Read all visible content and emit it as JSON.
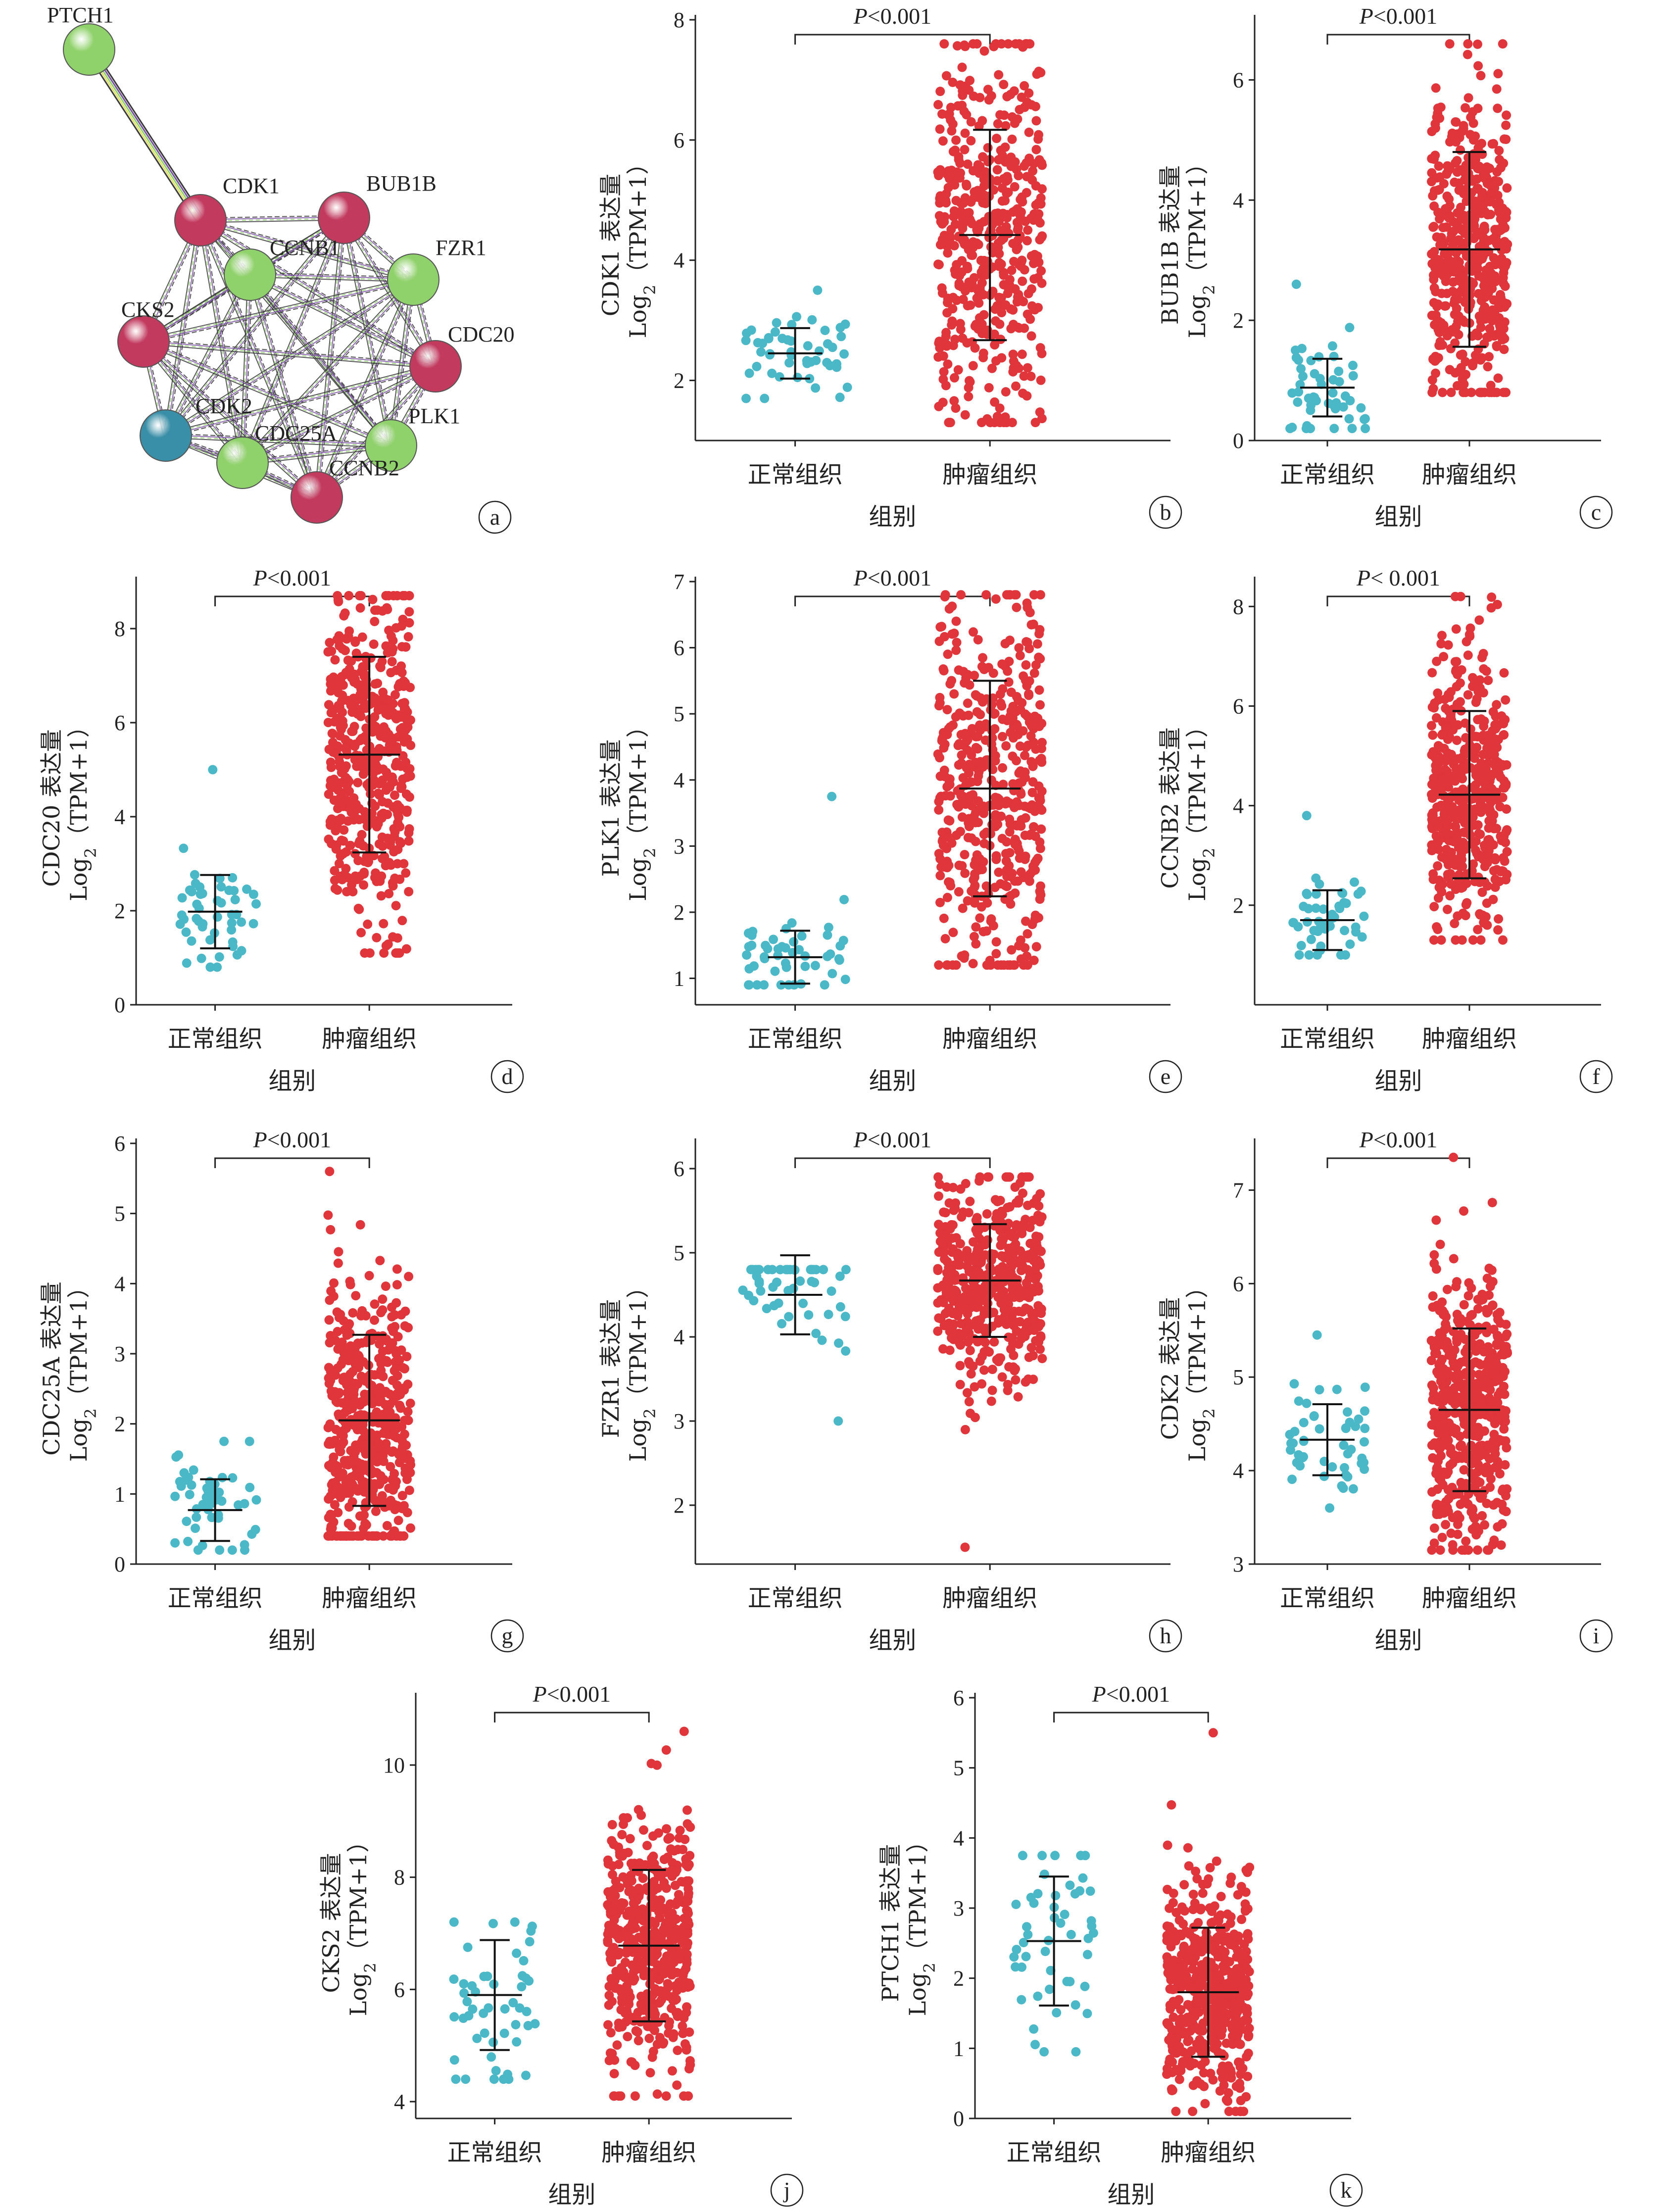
{
  "colors": {
    "normal": "#4bb8c8",
    "tumor": "#e0353b",
    "axis": "#222222"
  },
  "network": {
    "panel_label": "a",
    "nodes": [
      {
        "id": "PTCH1",
        "color": "#8fd16a"
      },
      {
        "id": "CDK1",
        "color": "#c23a5e"
      },
      {
        "id": "BUB1B",
        "color": "#c23a5e"
      },
      {
        "id": "CCNB1",
        "color": "#8fd16a"
      },
      {
        "id": "FZR1",
        "color": "#8fd16a"
      },
      {
        "id": "CKS2",
        "color": "#c23a5e"
      },
      {
        "id": "CDC20",
        "color": "#c23a5e"
      },
      {
        "id": "CDK2",
        "color": "#3a8fa8"
      },
      {
        "id": "CDC25A",
        "color": "#8fd16a"
      },
      {
        "id": "PLK1",
        "color": "#8fd16a"
      },
      {
        "id": "CCNB2",
        "color": "#c23a5e"
      }
    ]
  },
  "chart_data": [
    {
      "panel_label": "b",
      "type": "scatter",
      "gene": "CDK1",
      "ylabel_top": "CDK1 表达量",
      "ylabel_bottom": "Log2 (TPM+1)",
      "xlabel": "组别",
      "categories": [
        "正常组织",
        "肿瘤组织"
      ],
      "pvalue": "P<0.001",
      "ylim": [
        1,
        8
      ],
      "yticks": [
        2,
        4,
        6,
        8
      ],
      "series": [
        {
          "group": "正常组织",
          "n": 50,
          "mean": 2.45,
          "sd": 0.42,
          "min": 1.7,
          "max": 3.5
        },
        {
          "group": "肿瘤组织",
          "n": 500,
          "mean": 4.42,
          "sd": 1.75,
          "min": 1.3,
          "max": 7.6
        }
      ]
    },
    {
      "panel_label": "c",
      "type": "scatter",
      "gene": "BUB1B",
      "ylabel_top": "BUB1B 表达量",
      "ylabel_bottom": "Log2 (TPM+1)",
      "xlabel": "组别",
      "categories": [
        "正常组织",
        "肿瘤组织"
      ],
      "pvalue": "P<0.001",
      "ylim": [
        0,
        7
      ],
      "yticks": [
        0,
        2,
        4,
        6
      ],
      "series": [
        {
          "group": "正常组织",
          "n": 50,
          "mean": 0.88,
          "sd": 0.48,
          "min": 0.2,
          "max": 2.6
        },
        {
          "group": "肿瘤组织",
          "n": 500,
          "mean": 3.18,
          "sd": 1.62,
          "min": 0.8,
          "max": 6.6
        }
      ]
    },
    {
      "panel_label": "d",
      "type": "scatter",
      "gene": "CDC20",
      "ylabel_top": "CDC20 表达量",
      "ylabel_bottom": "Log2 (TPM+1)",
      "xlabel": "组别",
      "categories": [
        "正常组织",
        "肿瘤组织"
      ],
      "pvalue": "P<0.001",
      "ylim": [
        0,
        9
      ],
      "yticks": [
        0,
        2,
        4,
        6,
        8
      ],
      "series": [
        {
          "group": "正常组织",
          "n": 50,
          "mean": 1.98,
          "sd": 0.78,
          "min": 0.8,
          "max": 5.0
        },
        {
          "group": "肿瘤组织",
          "n": 500,
          "mean": 5.32,
          "sd": 2.08,
          "min": 1.1,
          "max": 8.7
        }
      ]
    },
    {
      "panel_label": "e",
      "type": "scatter",
      "gene": "PLK1",
      "ylabel_top": "PLK1 表达量",
      "ylabel_bottom": "Log2 (TPM+1)",
      "xlabel": "组别",
      "categories": [
        "正常组织",
        "肿瘤组织"
      ],
      "pvalue": "P<0.001",
      "ylim": [
        0.6,
        7
      ],
      "yticks": [
        1,
        2,
        3,
        4,
        5,
        6,
        7
      ],
      "series": [
        {
          "group": "正常组织",
          "n": 50,
          "mean": 1.32,
          "sd": 0.4,
          "min": 0.9,
          "max": 3.75
        },
        {
          "group": "肿瘤组织",
          "n": 500,
          "mean": 3.87,
          "sd": 1.63,
          "min": 1.2,
          "max": 6.8
        }
      ]
    },
    {
      "panel_label": "f",
      "type": "scatter",
      "gene": "CCNB2",
      "ylabel_top": "CCNB2 表达量",
      "ylabel_bottom": "Log2 (TPM+1)",
      "xlabel": "组别",
      "categories": [
        "正常组织",
        "肿瘤组织"
      ],
      "pvalue": "P< 0.001",
      "ylim": [
        0,
        8.5
      ],
      "yticks": [
        2,
        4,
        6,
        8
      ],
      "series": [
        {
          "group": "正常组织",
          "n": 50,
          "mean": 1.7,
          "sd": 0.6,
          "min": 1.0,
          "max": 3.8
        },
        {
          "group": "肿瘤组织",
          "n": 500,
          "mean": 4.22,
          "sd": 1.68,
          "min": 1.3,
          "max": 8.2
        }
      ]
    },
    {
      "panel_label": "g",
      "type": "scatter",
      "gene": "CDC25A",
      "ylabel_top": "CDC25A 表达量",
      "ylabel_bottom": "Log2 (TPM+1)",
      "xlabel": "组别",
      "categories": [
        "正常组织",
        "肿瘤组织"
      ],
      "pvalue": "P<0.001",
      "ylim": [
        0,
        6
      ],
      "yticks": [
        0,
        1,
        2,
        3,
        4,
        5,
        6
      ],
      "series": [
        {
          "group": "正常组织",
          "n": 50,
          "mean": 0.77,
          "sd": 0.44,
          "min": 0.2,
          "max": 1.75
        },
        {
          "group": "肿瘤组织",
          "n": 500,
          "mean": 2.05,
          "sd": 1.22,
          "min": 0.4,
          "max": 5.6
        }
      ]
    },
    {
      "panel_label": "h",
      "type": "scatter",
      "gene": "FZR1",
      "ylabel_top": "FZR1 表达量",
      "ylabel_bottom": "Log2 (TPM+1)",
      "xlabel": "组别",
      "categories": [
        "正常组织",
        "肿瘤组织"
      ],
      "pvalue": "P<0.001",
      "ylim": [
        1.3,
        6.3
      ],
      "yticks": [
        2,
        3,
        4,
        5,
        6
      ],
      "series": [
        {
          "group": "正常组织",
          "n": 50,
          "mean": 4.5,
          "sd": 0.47,
          "min": 3.0,
          "max": 4.8
        },
        {
          "group": "肿瘤组织",
          "n": 500,
          "mean": 4.67,
          "sd": 0.67,
          "min": 1.5,
          "max": 5.9
        }
      ]
    },
    {
      "panel_label": "i",
      "type": "scatter",
      "gene": "CDK2",
      "ylabel_top": "CDK2 表达量",
      "ylabel_bottom": "Log2 (TPM+1)",
      "xlabel": "组别",
      "categories": [
        "正常组织",
        "肿瘤组织"
      ],
      "pvalue": "P<0.001",
      "ylim": [
        3,
        7.5
      ],
      "yticks": [
        3,
        4,
        5,
        6,
        7
      ],
      "series": [
        {
          "group": "正常组织",
          "n": 50,
          "mean": 4.33,
          "sd": 0.38,
          "min": 3.6,
          "max": 5.45
        },
        {
          "group": "肿瘤组织",
          "n": 500,
          "mean": 4.65,
          "sd": 0.87,
          "min": 3.15,
          "max": 7.35
        }
      ]
    },
    {
      "panel_label": "j",
      "type": "scatter",
      "gene": "CKS2",
      "ylabel_top": "CKS2 表达量",
      "ylabel_bottom": "Log2 (TPM+1)",
      "xlabel": "组别",
      "categories": [
        "正常组织",
        "肿瘤组织"
      ],
      "pvalue": "P<0.001",
      "ylim": [
        3.7,
        11.2
      ],
      "yticks": [
        4,
        6,
        8,
        10
      ],
      "series": [
        {
          "group": "正常组织",
          "n": 50,
          "mean": 5.9,
          "sd": 0.98,
          "min": 4.4,
          "max": 7.2
        },
        {
          "group": "肿瘤组织",
          "n": 500,
          "mean": 6.78,
          "sd": 1.35,
          "min": 4.1,
          "max": 10.6
        }
      ]
    },
    {
      "panel_label": "k",
      "type": "scatter",
      "gene": "PTCH1",
      "ylabel_top": "PTCH1 表达量",
      "ylabel_bottom": "Log2 (TPM+1)",
      "xlabel": "组别",
      "categories": [
        "正常组织",
        "肿瘤组织"
      ],
      "pvalue": "P<0.001",
      "ylim": [
        0,
        6
      ],
      "yticks": [
        0,
        1,
        2,
        3,
        4,
        5,
        6
      ],
      "series": [
        {
          "group": "正常组织",
          "n": 50,
          "mean": 2.53,
          "sd": 0.92,
          "min": 0.95,
          "max": 3.75
        },
        {
          "group": "肿瘤组织",
          "n": 500,
          "mean": 1.8,
          "sd": 0.92,
          "min": 0.1,
          "max": 5.5
        }
      ]
    }
  ]
}
